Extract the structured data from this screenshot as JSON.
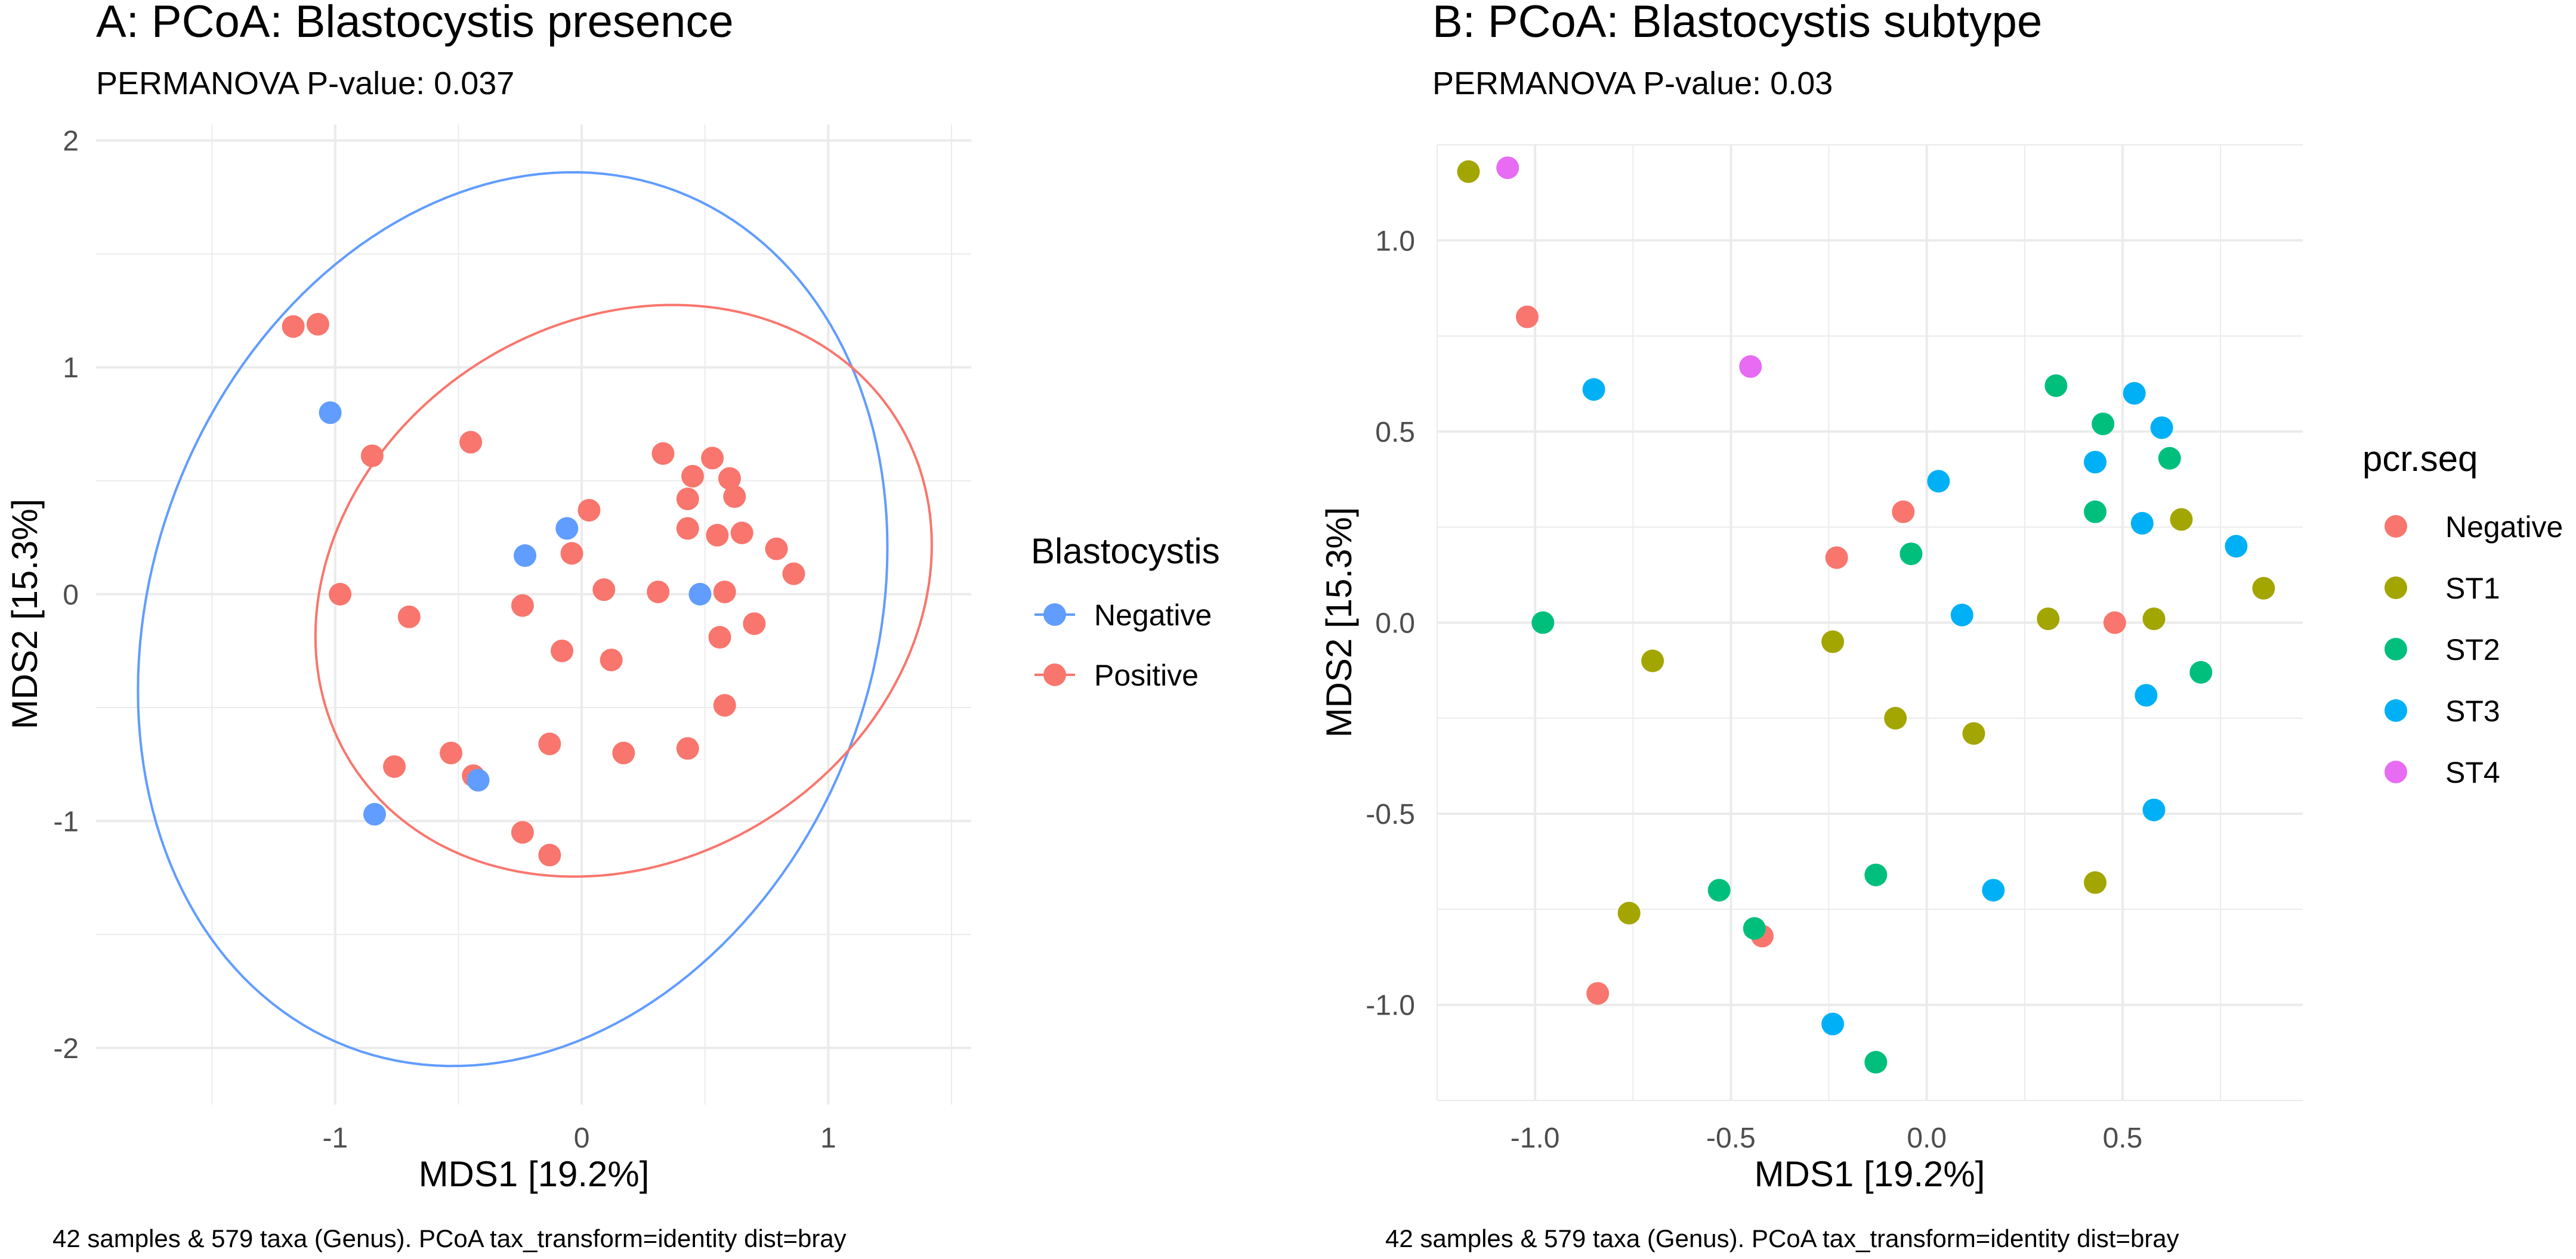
{
  "chart_data": [
    {
      "type": "scatter",
      "title": "A: PCoA: Blastocystis presence",
      "subtitle": "PERMANOVA P-value: 0.037",
      "xlabel": "MDS1 [19.2%]",
      "ylabel": "MDS2 [15.3%]",
      "caption": "42 samples & 579 taxa (Genus). PCoA tax_transform=identity dist=bray",
      "xlim": [
        -1.97,
        1.58
      ],
      "ylim": [
        -2.25,
        2.07
      ],
      "xticks": [
        -1,
        0,
        1
      ],
      "xtick_labels": [
        "-1",
        "0",
        "1"
      ],
      "yticks": [
        -2,
        -1,
        0,
        1,
        2
      ],
      "ytick_labels": [
        "-2",
        "-1",
        "0",
        "1",
        "2"
      ],
      "grid": true,
      "legend": {
        "title": "Blastocystis",
        "placement": "right",
        "entries": [
          "Negative",
          "Positive"
        ]
      },
      "colors": {
        "Negative": "#619CFF",
        "Positive": "#F8766D"
      },
      "ellipses": [
        {
          "group": "Negative",
          "center": [
            -0.28,
            -0.11
          ],
          "radii": [
            1.52,
            1.97
          ],
          "rho": 0.16
        },
        {
          "group": "Positive",
          "center": [
            0.17,
            0.015
          ],
          "radii": [
            1.25,
            1.26
          ],
          "rho": 0.16
        }
      ],
      "series": [
        {
          "name": "Positive",
          "points": [
            [
              -1.17,
              1.18
            ],
            [
              -0.7,
              -0.1
            ],
            [
              -0.24,
              -0.05
            ],
            [
              -0.08,
              -0.25
            ],
            [
              0.12,
              -0.29
            ],
            [
              0.31,
              0.01
            ],
            [
              0.58,
              0.01
            ],
            [
              0.65,
              0.27
            ],
            [
              0.86,
              0.09
            ],
            [
              0.43,
              -0.68
            ],
            [
              -0.76,
              -0.76
            ],
            [
              -1.07,
              1.19
            ],
            [
              -0.45,
              0.67
            ],
            [
              -0.85,
              0.61
            ],
            [
              0.03,
              0.37
            ],
            [
              0.09,
              0.02
            ],
            [
              0.53,
              0.6
            ],
            [
              0.6,
              0.51
            ],
            [
              0.43,
              0.42
            ],
            [
              0.55,
              0.26
            ],
            [
              0.79,
              0.2
            ],
            [
              0.56,
              -0.19
            ],
            [
              0.58,
              -0.49
            ],
            [
              0.17,
              -0.7
            ],
            [
              -0.24,
              -1.05
            ],
            [
              0.33,
              0.62
            ],
            [
              0.45,
              0.52
            ],
            [
              0.62,
              0.43
            ],
            [
              0.43,
              0.29
            ],
            [
              -0.04,
              0.18
            ],
            [
              -0.98,
              0.0
            ],
            [
              0.7,
              -0.13
            ],
            [
              -0.13,
              -0.66
            ],
            [
              -0.53,
              -0.7
            ],
            [
              -0.44,
              -0.8
            ],
            [
              -0.13,
              -1.15
            ]
          ]
        },
        {
          "name": "Negative",
          "points": [
            [
              -1.02,
              0.8
            ],
            [
              -0.06,
              0.29
            ],
            [
              -0.23,
              0.17
            ],
            [
              0.48,
              0.0
            ],
            [
              -0.42,
              -0.82
            ],
            [
              -0.84,
              -0.97
            ]
          ]
        }
      ]
    },
    {
      "type": "scatter",
      "title": "B: PCoA: Blastocystis subtype",
      "subtitle": "PERMANOVA P-value: 0.03",
      "xlabel": "MDS1 [19.2%]",
      "ylabel": "MDS2 [15.3%]",
      "caption": "42 samples & 579 taxa (Genus). PCoA tax_transform=identity dist=bray",
      "xlim": [
        -1.25,
        0.96
      ],
      "ylim": [
        -1.25,
        1.25
      ],
      "xticks": [
        -1.0,
        -0.5,
        0.0,
        0.5
      ],
      "xtick_labels": [
        "-1.0",
        "-0.5",
        "0.0",
        "0.5"
      ],
      "yticks": [
        -1.0,
        -0.5,
        0.0,
        0.5,
        1.0
      ],
      "ytick_labels": [
        "-1.0",
        "-0.5",
        "0.0",
        "0.5",
        "1.0"
      ],
      "grid": true,
      "legend": {
        "title": "pcr.seq",
        "placement": "right",
        "entries": [
          "Negative",
          "ST1",
          "ST2",
          "ST3",
          "ST4"
        ]
      },
      "colors": {
        "Negative": "#F8766D",
        "ST1": "#A3A500",
        "ST2": "#00BF7D",
        "ST3": "#00B0F6",
        "ST4": "#E76BF3"
      },
      "ellipses": [],
      "series": [
        {
          "name": "ST1",
          "points": [
            [
              -1.17,
              1.18
            ],
            [
              -0.7,
              -0.1
            ],
            [
              -0.24,
              -0.05
            ],
            [
              -0.08,
              -0.25
            ],
            [
              0.12,
              -0.29
            ],
            [
              0.31,
              0.01
            ],
            [
              0.58,
              0.01
            ],
            [
              0.65,
              0.27
            ],
            [
              0.86,
              0.09
            ],
            [
              0.43,
              -0.68
            ],
            [
              -0.76,
              -0.76
            ]
          ]
        },
        {
          "name": "ST4",
          "points": [
            [
              -1.07,
              1.19
            ],
            [
              -0.45,
              0.67
            ]
          ]
        },
        {
          "name": "ST3",
          "points": [
            [
              -0.85,
              0.61
            ],
            [
              0.03,
              0.37
            ],
            [
              0.09,
              0.02
            ],
            [
              0.53,
              0.6
            ],
            [
              0.6,
              0.51
            ],
            [
              0.43,
              0.42
            ],
            [
              0.55,
              0.26
            ],
            [
              0.79,
              0.2
            ],
            [
              0.56,
              -0.19
            ],
            [
              0.58,
              -0.49
            ],
            [
              0.17,
              -0.7
            ],
            [
              -0.24,
              -1.05
            ]
          ]
        },
        {
          "name": "Negative",
          "points": [
            [
              -1.02,
              0.8
            ],
            [
              -0.06,
              0.29
            ],
            [
              -0.23,
              0.17
            ],
            [
              0.48,
              0.0
            ],
            [
              -0.42,
              -0.82
            ],
            [
              -0.84,
              -0.97
            ]
          ]
        },
        {
          "name": "ST2",
          "points": [
            [
              0.33,
              0.62
            ],
            [
              0.45,
              0.52
            ],
            [
              0.62,
              0.43
            ],
            [
              0.43,
              0.29
            ],
            [
              -0.04,
              0.18
            ],
            [
              -0.98,
              0.0
            ],
            [
              0.7,
              -0.13
            ],
            [
              -0.13,
              -0.66
            ],
            [
              -0.53,
              -0.7
            ],
            [
              -0.44,
              -0.8
            ],
            [
              -0.13,
              -1.15
            ]
          ]
        }
      ]
    }
  ]
}
